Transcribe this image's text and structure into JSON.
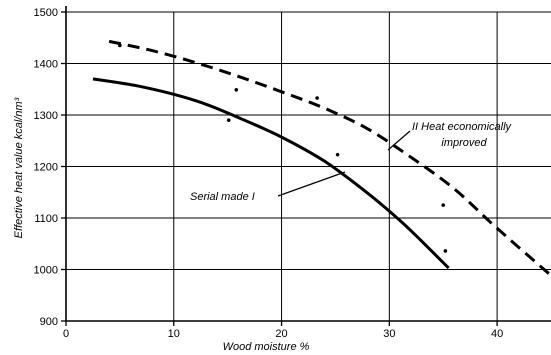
{
  "chart_data": {
    "type": "line",
    "xlabel": "Wood moisture %",
    "ylabel": "Effective heat value kcal/nm³",
    "xlim": [
      0,
      45
    ],
    "ylim": [
      900,
      1500
    ],
    "xticks": [
      0,
      10,
      20,
      30,
      40
    ],
    "yticks": [
      900,
      1000,
      1100,
      1200,
      1300,
      1400,
      1500
    ],
    "grid": true,
    "series": [
      {
        "style": "solid",
        "x": [
          2.5,
          7,
          12,
          16,
          20,
          24,
          28,
          31,
          33,
          35.5
        ],
        "y": [
          1370,
          1355,
          1328,
          1295,
          1257,
          1210,
          1148,
          1095,
          1055,
          1003
        ]
      },
      {
        "style": "dashed",
        "x": [
          4,
          8,
          12,
          16,
          20,
          24,
          28,
          32,
          36,
          40,
          45.3
        ],
        "y": [
          1443,
          1425,
          1402,
          1375,
          1345,
          1313,
          1273,
          1218,
          1157,
          1080,
          983
        ]
      }
    ],
    "points": [
      {
        "x": 15.1,
        "y": 1290
      },
      {
        "x": 15.8,
        "y": 1349
      },
      {
        "x": 23.3,
        "y": 1333
      },
      {
        "x": 25.2,
        "y": 1223
      },
      {
        "x": 35.0,
        "y": 1125
      },
      {
        "x": 35.2,
        "y": 1036
      },
      {
        "x": 5.0,
        "y": 1435
      }
    ],
    "annotations": {
      "serial": "Serial made I",
      "heat_line1": "II Heat economically",
      "heat_line2": "improved"
    }
  }
}
